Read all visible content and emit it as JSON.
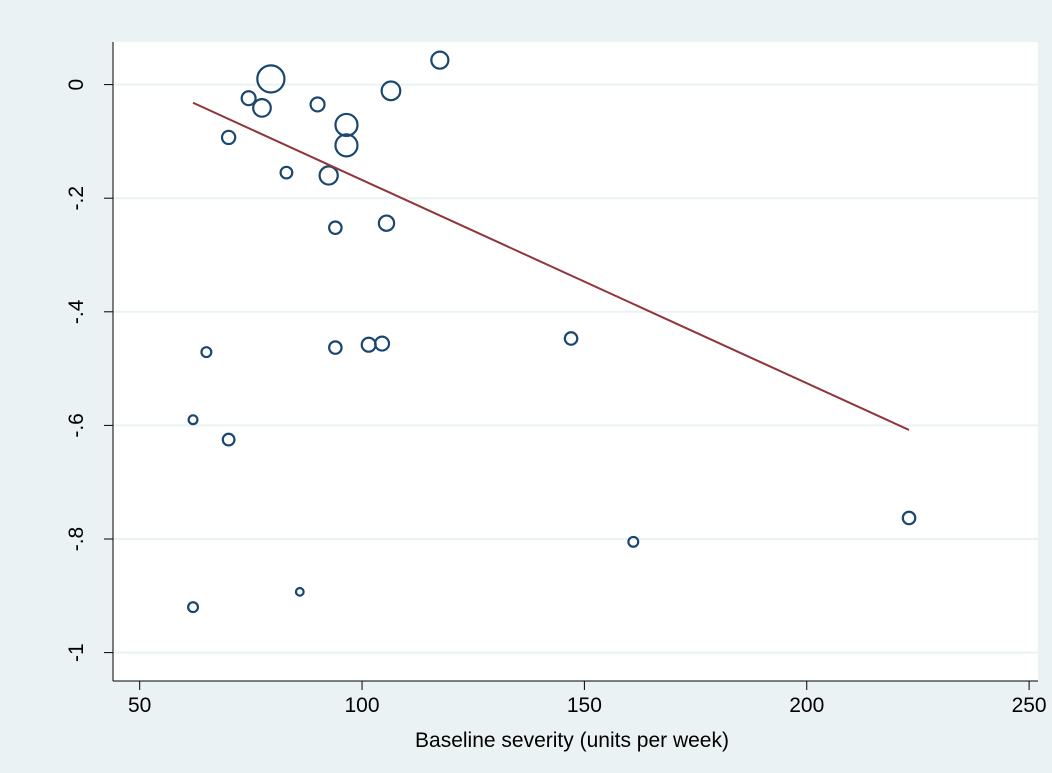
{
  "chart_data": {
    "type": "scatter",
    "title": "",
    "xlabel": "Baseline severity (units per week)",
    "ylabel": "",
    "xlim": [
      44,
      252
    ],
    "ylim": [
      -1.05,
      0.075
    ],
    "xticks": [
      50,
      100,
      150,
      200,
      250
    ],
    "yticks": [
      0,
      -0.2,
      -0.4,
      -0.6,
      -0.8,
      -1
    ],
    "ytick_labels": [
      "0",
      "-.2",
      "-.4",
      "-.6",
      "-.8",
      "-1"
    ],
    "grid": true,
    "colors": {
      "marker": "#1a476f",
      "fit_line": "#90353b",
      "plot_bg": "#ffffff",
      "outer_bg": "#eaf2f3",
      "grid": "#eaf2f3"
    },
    "points": [
      {
        "x": 79.5,
        "y": 0.01,
        "weight": 38
      },
      {
        "x": 117.5,
        "y": 0.043,
        "weight": 15
      },
      {
        "x": 106.5,
        "y": -0.011,
        "weight": 18
      },
      {
        "x": 74.5,
        "y": -0.024,
        "weight": 10
      },
      {
        "x": 77.5,
        "y": -0.041,
        "weight": 16
      },
      {
        "x": 90.0,
        "y": -0.035,
        "weight": 10
      },
      {
        "x": 96.5,
        "y": -0.071,
        "weight": 25
      },
      {
        "x": 96.5,
        "y": -0.107,
        "weight": 25
      },
      {
        "x": 70.0,
        "y": -0.093,
        "weight": 9
      },
      {
        "x": 83.0,
        "y": -0.155,
        "weight": 7
      },
      {
        "x": 92.5,
        "y": -0.16,
        "weight": 17
      },
      {
        "x": 94.0,
        "y": -0.252,
        "weight": 8
      },
      {
        "x": 105.5,
        "y": -0.244,
        "weight": 12
      },
      {
        "x": 65.0,
        "y": -0.471,
        "weight": 5
      },
      {
        "x": 94.0,
        "y": -0.463,
        "weight": 8
      },
      {
        "x": 101.5,
        "y": -0.458,
        "weight": 10
      },
      {
        "x": 104.5,
        "y": -0.456,
        "weight": 10
      },
      {
        "x": 147.0,
        "y": -0.447,
        "weight": 8
      },
      {
        "x": 62.0,
        "y": -0.59,
        "weight": 4
      },
      {
        "x": 70.0,
        "y": -0.625,
        "weight": 7
      },
      {
        "x": 223.0,
        "y": -0.763,
        "weight": 8
      },
      {
        "x": 161.0,
        "y": -0.805,
        "weight": 5
      },
      {
        "x": 62.0,
        "y": -0.92,
        "weight": 5
      },
      {
        "x": 86.0,
        "y": -0.893,
        "weight": 3
      }
    ],
    "fit_line": {
      "x": [
        62,
        223
      ],
      "y": [
        -0.032,
        -0.608
      ]
    }
  }
}
